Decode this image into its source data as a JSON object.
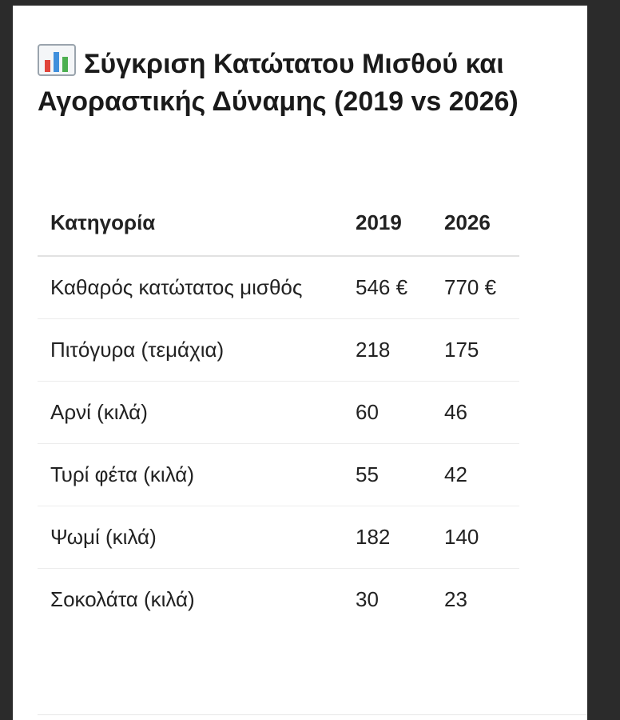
{
  "header": {
    "title": "Σύγκριση Κατώτατου Μισθού και Αγοραστικής Δύναμης (2019 vs 2026)"
  },
  "table": {
    "columns": [
      "Κατηγορία",
      "2019",
      "2026"
    ],
    "rows": [
      [
        "Καθαρός κατώτατος μισθός",
        "546 €",
        "770 €"
      ],
      [
        "Πιτόγυρα (τεμάχια)",
        "218",
        "175"
      ],
      [
        "Αρνί (κιλά)",
        "60",
        "46"
      ],
      [
        "Τυρί φέτα (κιλά)",
        "55",
        "42"
      ],
      [
        "Ψωμί (κιλά)",
        "182",
        "140"
      ],
      [
        "Σοκολάτα (κιλά)",
        "30",
        "23"
      ]
    ]
  }
}
